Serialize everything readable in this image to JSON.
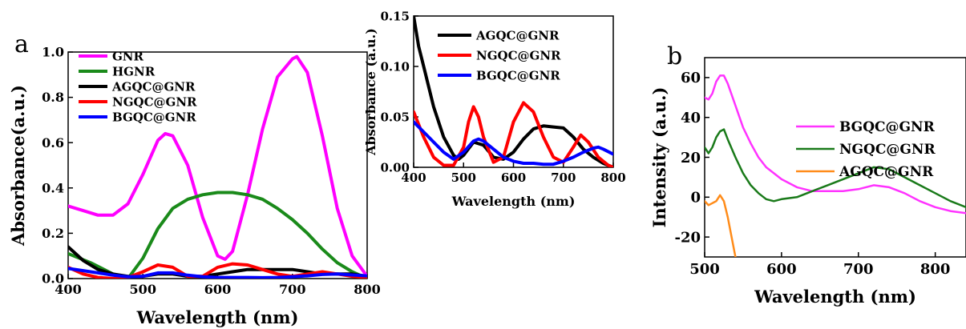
{
  "chart_data": [
    {
      "panel": "a",
      "type": "line",
      "xlabel": "Wavelength (nm)",
      "ylabel": "Absorbance(a.u.)",
      "xlim": [
        400,
        800
      ],
      "ylim": [
        0,
        1.0
      ],
      "xticks": [
        "400",
        "500",
        "600",
        "700",
        "800"
      ],
      "yticks": [
        "0.0",
        "0.2",
        "0.4",
        "0.6",
        "0.8",
        "1.0"
      ],
      "legend_position": "top-left",
      "series": [
        {
          "name": "GNR",
          "color": "#ff00ff",
          "x": [
            400,
            420,
            440,
            460,
            480,
            500,
            520,
            530,
            540,
            560,
            580,
            600,
            610,
            620,
            640,
            660,
            680,
            700,
            706,
            720,
            740,
            760,
            780,
            800
          ],
          "y": [
            0.32,
            0.3,
            0.28,
            0.28,
            0.33,
            0.46,
            0.61,
            0.64,
            0.63,
            0.5,
            0.27,
            0.1,
            0.085,
            0.12,
            0.37,
            0.66,
            0.89,
            0.97,
            0.98,
            0.91,
            0.63,
            0.31,
            0.1,
            0.01
          ]
        },
        {
          "name": "HGNR",
          "color": "#1a8a1a",
          "x": [
            400,
            430,
            460,
            480,
            500,
            520,
            540,
            560,
            580,
            600,
            620,
            640,
            660,
            680,
            700,
            720,
            740,
            760,
            780,
            800
          ],
          "y": [
            0.11,
            0.07,
            0.02,
            0.0,
            0.09,
            0.22,
            0.31,
            0.35,
            0.37,
            0.38,
            0.38,
            0.37,
            0.35,
            0.31,
            0.26,
            0.2,
            0.13,
            0.07,
            0.03,
            0.0
          ]
        },
        {
          "name": "AGQC@GNR",
          "color": "#000000",
          "x": [
            400,
            420,
            440,
            460,
            480,
            500,
            520,
            540,
            560,
            580,
            600,
            620,
            640,
            660,
            680,
            700,
            720,
            740,
            760,
            780,
            800
          ],
          "y": [
            0.14,
            0.08,
            0.04,
            0.02,
            0.01,
            0.01,
            0.02,
            0.02,
            0.01,
            0.01,
            0.02,
            0.03,
            0.04,
            0.04,
            0.04,
            0.04,
            0.03,
            0.02,
            0.02,
            0.02,
            0.01
          ]
        },
        {
          "name": "NGQC@GNR",
          "color": "#ff0000",
          "x": [
            400,
            420,
            440,
            460,
            480,
            500,
            520,
            540,
            560,
            580,
            600,
            620,
            640,
            660,
            680,
            700,
            720,
            740,
            760,
            780,
            800
          ],
          "y": [
            0.05,
            0.02,
            0.005,
            0.0,
            0.005,
            0.03,
            0.06,
            0.05,
            0.01,
            0.01,
            0.05,
            0.065,
            0.06,
            0.04,
            0.02,
            0.01,
            0.02,
            0.03,
            0.02,
            0.01,
            0.005
          ]
        },
        {
          "name": "BGQC@GNR",
          "color": "#0000ff",
          "x": [
            400,
            420,
            440,
            460,
            480,
            500,
            520,
            540,
            560,
            580,
            600,
            620,
            640,
            660,
            680,
            700,
            720,
            740,
            760,
            780,
            800
          ],
          "y": [
            0.045,
            0.035,
            0.025,
            0.015,
            0.008,
            0.01,
            0.025,
            0.025,
            0.015,
            0.008,
            0.005,
            0.005,
            0.005,
            0.004,
            0.005,
            0.008,
            0.012,
            0.018,
            0.02,
            0.016,
            0.012
          ]
        }
      ]
    },
    {
      "panel": "inset",
      "type": "line",
      "xlabel": "Wavelength (nm)",
      "ylabel": "Absorbance (a.u.)",
      "xlim": [
        400,
        800
      ],
      "ylim": [
        0,
        0.15
      ],
      "xticks": [
        "400",
        "500",
        "600",
        "700",
        "800"
      ],
      "yticks": [
        "0.00",
        "0.05",
        "0.10",
        "0.15"
      ],
      "legend_position": "top-right",
      "series": [
        {
          "name": "AGQC@GNR",
          "color": "#000000",
          "x": [
            400,
            410,
            420,
            440,
            460,
            480,
            490,
            500,
            520,
            540,
            560,
            580,
            600,
            620,
            640,
            660,
            680,
            700,
            720,
            740,
            760,
            780,
            800
          ],
          "y": [
            0.15,
            0.12,
            0.1,
            0.06,
            0.03,
            0.012,
            0.008,
            0.012,
            0.025,
            0.022,
            0.01,
            0.008,
            0.015,
            0.028,
            0.038,
            0.041,
            0.04,
            0.039,
            0.03,
            0.018,
            0.01,
            0.004,
            0.0
          ]
        },
        {
          "name": "NGQC@GNR",
          "color": "#ff0000",
          "x": [
            400,
            420,
            440,
            460,
            480,
            500,
            510,
            520,
            530,
            540,
            560,
            580,
            600,
            620,
            640,
            660,
            680,
            700,
            720,
            735,
            750,
            770,
            790,
            800
          ],
          "y": [
            0.055,
            0.03,
            0.01,
            0.002,
            0.002,
            0.02,
            0.045,
            0.06,
            0.05,
            0.03,
            0.005,
            0.01,
            0.045,
            0.064,
            0.055,
            0.03,
            0.01,
            0.005,
            0.02,
            0.032,
            0.025,
            0.01,
            0.002,
            0.0
          ]
        },
        {
          "name": "BGQC@GNR",
          "color": "#0000ff",
          "x": [
            400,
            420,
            440,
            460,
            480,
            500,
            520,
            530,
            540,
            560,
            580,
            600,
            620,
            640,
            660,
            680,
            700,
            720,
            740,
            760,
            770,
            780,
            800
          ],
          "y": [
            0.045,
            0.035,
            0.025,
            0.015,
            0.008,
            0.015,
            0.026,
            0.028,
            0.026,
            0.018,
            0.01,
            0.006,
            0.004,
            0.004,
            0.003,
            0.003,
            0.006,
            0.01,
            0.015,
            0.019,
            0.02,
            0.018,
            0.013
          ]
        }
      ]
    },
    {
      "panel": "b",
      "type": "line",
      "xlabel": "Wavelength (nm)",
      "ylabel": "Intensity (a.u.)",
      "xlim": [
        500,
        840
      ],
      "ylim": [
        -30,
        70
      ],
      "xticks": [
        "500",
        "600",
        "700",
        "800"
      ],
      "yticks": [
        "-20",
        "0",
        "20",
        "40",
        "60"
      ],
      "legend_position": "right",
      "series": [
        {
          "name": "BGQC@GNR",
          "color": "#ff33ff",
          "x": [
            500,
            505,
            510,
            515,
            520,
            525,
            530,
            540,
            550,
            560,
            570,
            580,
            600,
            620,
            640,
            660,
            680,
            700,
            720,
            740,
            760,
            780,
            800,
            820,
            840
          ],
          "y": [
            50,
            49,
            52,
            58,
            61,
            61,
            57,
            46,
            35,
            27,
            20,
            15,
            9,
            5,
            3,
            3,
            3,
            4,
            6,
            5,
            2,
            -2,
            -5,
            -7,
            -8
          ]
        },
        {
          "name": "NGQC@GNR",
          "color": "#1a7a1a",
          "x": [
            500,
            505,
            510,
            515,
            520,
            525,
            530,
            540,
            550,
            560,
            570,
            580,
            590,
            600,
            620,
            640,
            660,
            680,
            700,
            720,
            740,
            760,
            780,
            800,
            820,
            840
          ],
          "y": [
            25,
            22,
            25,
            30,
            33,
            34,
            29,
            20,
            12,
            6,
            2,
            -1,
            -2,
            -1,
            0,
            3,
            6,
            9,
            12,
            15,
            14,
            10,
            6,
            2,
            -2,
            -5
          ]
        },
        {
          "name": "AGQC@GNR",
          "color": "#ff8c1a",
          "x": [
            500,
            505,
            510,
            515,
            520,
            525,
            530,
            535,
            540
          ],
          "y": [
            -2,
            -4,
            -3,
            -2,
            1,
            -2,
            -10,
            -20,
            -30
          ]
        }
      ]
    }
  ],
  "labels": {
    "panel_a": "a",
    "panel_b": "b"
  }
}
